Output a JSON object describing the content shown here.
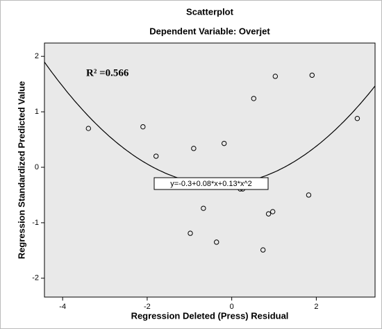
{
  "chart_data": {
    "type": "scatter",
    "title": "Scatterplot",
    "subtitle": "Dependent Variable: Overjet",
    "x_label": "Regression Deleted (Press) Residual",
    "y_label": "Regression Standardized Predicted Value",
    "annotations": [
      "R² =0.566"
    ],
    "fit": {
      "label": "y=-0.3+0.08*x+0.13*x^2",
      "coefficients": [
        -0.3,
        0.08,
        0.13
      ]
    },
    "x": [
      -3.39,
      -2.1,
      -1.79,
      -0.9,
      -0.18,
      0.52,
      1.03,
      1.9,
      2.97,
      -0.67,
      -0.98,
      -0.36,
      0.2,
      0.26,
      0.87,
      0.97,
      1.82,
      0.74
    ],
    "values": [
      0.7,
      0.73,
      0.2,
      0.34,
      0.43,
      1.24,
      1.64,
      1.66,
      0.88,
      -0.74,
      -1.19,
      -1.35,
      -0.39,
      -0.39,
      -0.84,
      -0.8,
      -0.5,
      -1.49
    ],
    "color": "#000000",
    "xlim": [
      -4.43,
      3.39
    ],
    "xticks": [
      -4,
      -2,
      0,
      2
    ],
    "ylim": [
      -2.34,
      2.24
    ],
    "yticks": [
      -2,
      -1,
      0,
      1,
      2
    ],
    "grid": false
  }
}
